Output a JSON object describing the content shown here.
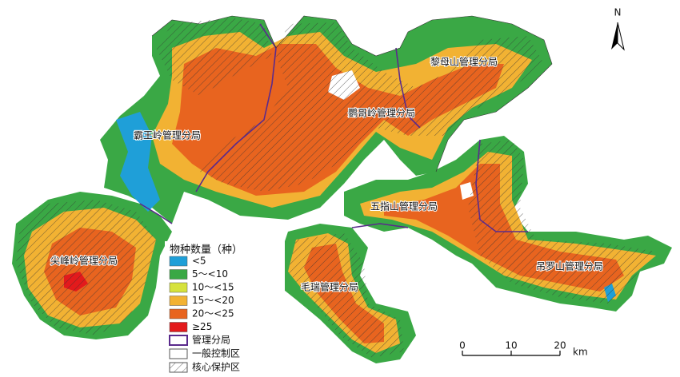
{
  "map": {
    "north_label": "N",
    "regions": [
      "黎母山管理分局",
      "鹦哥岭管理分局",
      "霸王岭管理分局",
      "五指山管理分局",
      "尖峰岭管理分局",
      "毛瑞管理分局",
      "吊罗山管理分局"
    ],
    "legend": {
      "title": "物种数量（种）",
      "classes": [
        {
          "label": "<5",
          "color": "#1f9fd8"
        },
        {
          "label": "5～<10",
          "color": "#3aa845"
        },
        {
          "label": "10～<15",
          "color": "#d6e23c"
        },
        {
          "label": "15～<20",
          "color": "#f2b233"
        },
        {
          "label": "20～<25",
          "color": "#e8641f"
        },
        {
          "label": "≥25",
          "color": "#e31a1c"
        }
      ],
      "boundary": "管理分局",
      "general_zone": "一般控制区",
      "core_zone": "核心保护区"
    },
    "scale_bar": {
      "ticks": [
        0,
        10,
        20
      ],
      "unit": "km"
    }
  }
}
